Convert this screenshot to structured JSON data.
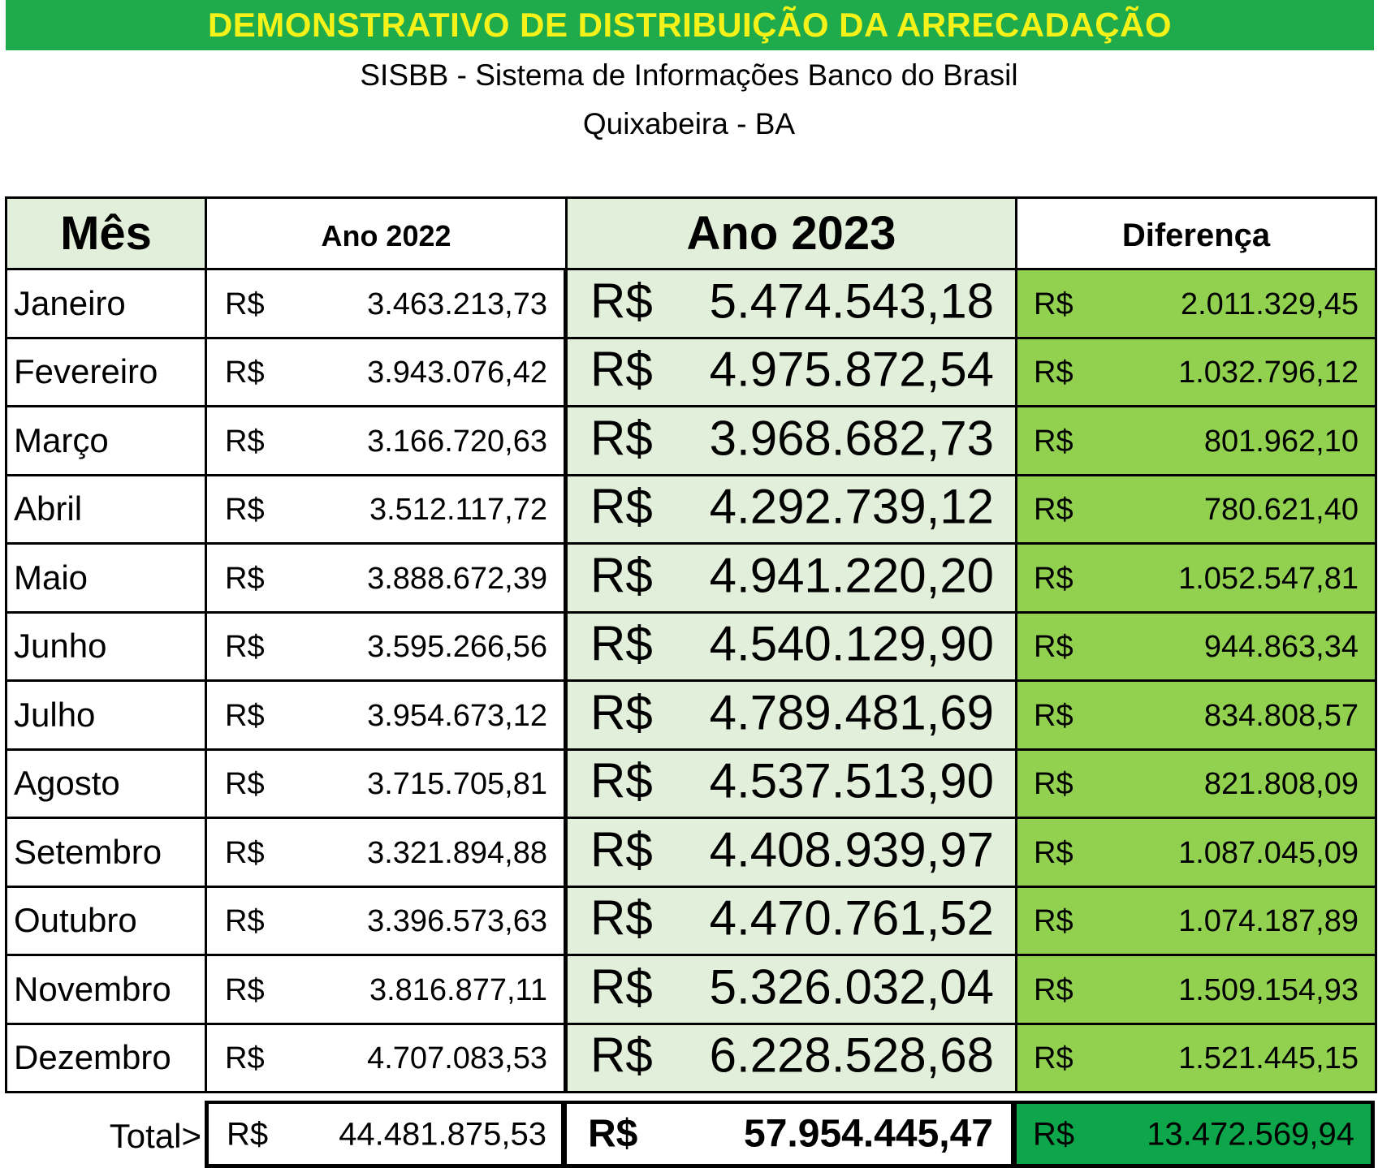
{
  "header": {
    "title": "DEMONSTRATIVO DE DISTRIBUIÇÃO DA ARRECADAÇÃO",
    "subtitle": "SISBB - Sistema de Informações Banco do Brasil",
    "location": "Quixabeira - BA"
  },
  "colors": {
    "banner_bg": "#1faa4b",
    "banner_text": "#f5f219",
    "light_green": "#e2efda",
    "diff_green": "#92d050",
    "total_diff_green": "#0da64a"
  },
  "table": {
    "columns": [
      "Mês",
      "Ano 2022",
      "Ano 2023",
      "Diferença"
    ],
    "currency": "R$",
    "rows": [
      {
        "month": "Janeiro",
        "y2022": "3.463.213,73",
        "y2023": "5.474.543,18",
        "diff": "2.011.329,45"
      },
      {
        "month": "Fevereiro",
        "y2022": "3.943.076,42",
        "y2023": "4.975.872,54",
        "diff": "1.032.796,12"
      },
      {
        "month": "Março",
        "y2022": "3.166.720,63",
        "y2023": "3.968.682,73",
        "diff": "801.962,10"
      },
      {
        "month": "Abril",
        "y2022": "3.512.117,72",
        "y2023": "4.292.739,12",
        "diff": "780.621,40"
      },
      {
        "month": "Maio",
        "y2022": "3.888.672,39",
        "y2023": "4.941.220,20",
        "diff": "1.052.547,81"
      },
      {
        "month": "Junho",
        "y2022": "3.595.266,56",
        "y2023": "4.540.129,90",
        "diff": "944.863,34"
      },
      {
        "month": "Julho",
        "y2022": "3.954.673,12",
        "y2023": "4.789.481,69",
        "diff": "834.808,57"
      },
      {
        "month": "Agosto",
        "y2022": "3.715.705,81",
        "y2023": "4.537.513,90",
        "diff": "821.808,09"
      },
      {
        "month": "Setembro",
        "y2022": "3.321.894,88",
        "y2023": "4.408.939,97",
        "diff": "1.087.045,09"
      },
      {
        "month": "Outubro",
        "y2022": "3.396.573,63",
        "y2023": "4.470.761,52",
        "diff": "1.074.187,89"
      },
      {
        "month": "Novembro",
        "y2022": "3.816.877,11",
        "y2023": "5.326.032,04",
        "diff": "1.509.154,93"
      },
      {
        "month": "Dezembro",
        "y2022": "4.707.083,53",
        "y2023": "6.228.528,68",
        "diff": "1.521.445,15"
      }
    ],
    "totals": {
      "label": "Total>",
      "y2022": "44.481.875,53",
      "y2023": "57.954.445,47",
      "diff": "13.472.569,94"
    }
  }
}
